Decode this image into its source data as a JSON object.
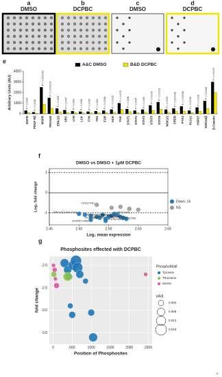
{
  "blots": [
    {
      "letter": "a",
      "label": "DMSO"
    },
    {
      "letter": "b",
      "label": "DCPBC"
    },
    {
      "letter": "c",
      "label": "DMSO"
    },
    {
      "letter": "d",
      "label": "DCPBC"
    }
  ],
  "page_number": "4",
  "chart_data": [
    {
      "type": "bar",
      "panel": "e",
      "ylabel": "Arbitrary Units (AU)",
      "categories": [
        "EGFR",
        "PDGF Rβ",
        "MSPR",
        "PRAS40",
        "ERK1/2",
        "SRC",
        "LYN",
        "LCK",
        "FYN",
        "YES",
        "FGR",
        "HCK",
        "FAK",
        "STAT1",
        "STAT2",
        "STAT3",
        "STAT5",
        "STAT6",
        "MSK1/2",
        "CREB",
        "PYK2",
        "PLCγ1",
        "HSP27",
        "GSK3α/β",
        "β-Catenin"
      ],
      "annotations": [
        "P = 0.0054",
        "P = 0.0038",
        "P = 0.0000153",
        "P = 0.0000019",
        "P = 0.0063",
        "P = 0.0047",
        "P = 0.0061",
        "P = 0.0064",
        "P = 0.0039",
        "P = 0.0051",
        "P = 0.01068",
        "P = 0.00016",
        "P = 0.0075",
        "P = 0.0256",
        "P = 0.0054",
        "P = 0.0083",
        "P = 0.00006",
        "P = 0.00019",
        "P = 0.0018",
        "P = 0.0000096",
        "P = 0.000096",
        "P = 0.00096",
        "P = 0.0026",
        "P = 0.00068",
        "P = 0.00019"
      ],
      "series": [
        {
          "name": "A&C DMSO",
          "color": "#000000",
          "values": [
            300,
            150,
            2500,
            1500,
            500,
            350,
            250,
            200,
            200,
            250,
            300,
            400,
            1000,
            450,
            300,
            400,
            800,
            1100,
            400,
            500,
            700,
            300,
            600,
            1200,
            3000
          ]
        },
        {
          "name": "B&D DCPBC",
          "color": "#f2e600",
          "values": [
            120,
            60,
            900,
            500,
            180,
            120,
            100,
            80,
            90,
            100,
            120,
            150,
            400,
            200,
            120,
            160,
            300,
            450,
            150,
            200,
            250,
            120,
            250,
            500,
            2000
          ]
        }
      ],
      "ylim": [
        0,
        4000
      ],
      "yticks": [
        0,
        1000,
        2000,
        3000,
        4000
      ]
    },
    {
      "type": "scatter",
      "panel": "f",
      "title": "DMSO vs DMSO + 1μM DCPBC",
      "xlabel": "Log₂ mean expression",
      "ylabel": "Log₂ fold change",
      "series": [
        {
          "name": "Down: 16",
          "color": "#1f77b4",
          "x": [
            2.5,
            2.51,
            2.52,
            2.53,
            2.535,
            2.54,
            2.545,
            2.55,
            2.555,
            2.56,
            2.565,
            2.57,
            2.575,
            2.58,
            2.52,
            2.545
          ],
          "values": [
            -1.05,
            -1.1,
            -1.15,
            -1.2,
            -1.25,
            -1.1,
            -1.3,
            -1.2,
            -1.15,
            -1.05,
            -1.1,
            -1.2,
            -1.25,
            -1.3,
            -1.35,
            -1.4
          ],
          "labels": [
            "ERK1/2(T202/Y204)",
            "MTOR(S2448)",
            null,
            "LYN(Y397)",
            "YES(Y426)",
            null,
            "LCK(Y394)",
            "FGR(Y412)",
            null,
            "SRC(Y419)",
            "FYN(Y420)",
            "CHK2(T68)",
            "FAK(Y397)",
            null,
            "EGFR(Y1086)",
            "STAT5(Y694)"
          ]
        },
        {
          "name": "NS",
          "color": "#9a9a9a",
          "x": [
            2.53,
            2.555,
            2.57,
            2.585,
            2.6
          ],
          "values": [
            -0.6,
            -0.75,
            -0.7,
            -0.8,
            -0.85
          ],
          "labels": [
            "HCK(Y411)",
            null,
            null,
            null,
            null
          ]
        }
      ],
      "reference_lines": [
        {
          "value": 1,
          "style": "dashed"
        },
        {
          "value": 0,
          "style": "solid"
        },
        {
          "value": -1,
          "style": "dashed"
        }
      ],
      "xlim": [
        2.45,
        2.65
      ],
      "xticks": [
        2.45,
        2.5,
        2.55,
        2.6,
        2.65
      ],
      "xtick_labels": [
        "2.45",
        "2.50",
        "2.55",
        "2.60",
        "2.65"
      ],
      "ylim": [
        -1.6,
        1.2
      ],
      "yticks": [
        -1,
        0,
        1
      ]
    },
    {
      "type": "bubble",
      "panel": "g",
      "title": "Phosphosites effected with DCPBC",
      "xlabel": "Position of Phosphosites",
      "ylabel": "fold change",
      "legend_title": "PhosphoMotif",
      "size_title": "pAdj",
      "size_legend": [
        0.004,
        0.008,
        0.012,
        0.016
      ],
      "series": [
        {
          "name": "Tyrosine",
          "color": "#1f77b4",
          "x": [
            300,
            380,
            420,
            520,
            600,
            640,
            700,
            450,
            500,
            1000,
            1050,
            850
          ],
          "values": [
            -1.95,
            -2.1,
            -2.25,
            -2.0,
            -1.9,
            -2.05,
            -2.2,
            -2.9,
            -3.1,
            -3.05,
            -3.6,
            -2.35
          ],
          "sizes": [
            0.01,
            0.008,
            0.006,
            0.012,
            0.016,
            0.014,
            0.008,
            0.004,
            0.006,
            0.006,
            0.01,
            0.004
          ]
        },
        {
          "name": "Threonine",
          "color": "#8bc34a",
          "x": [
            20,
            380
          ],
          "values": [
            -2.2,
            -2.25
          ],
          "sizes": [
            0.004,
            0.01
          ]
        },
        {
          "name": "Serine",
          "color": "#e0569b",
          "x": [
            10,
            40,
            60,
            90,
            2430
          ],
          "values": [
            -2.0,
            -2.1,
            -2.3,
            -2.45,
            -2.2
          ],
          "sizes": [
            0.002,
            0.003,
            0.002,
            0.004,
            0.002
          ]
        }
      ],
      "xlim": [
        -100,
        2600
      ],
      "xticks": [
        0,
        500,
        1000,
        1500,
        2000,
        2500
      ],
      "ylim": [
        -3.75,
        -1.8
      ],
      "yticks": [
        {
          "value": -2,
          "label": "-2.0"
        },
        -2.5,
        {
          "value": -3,
          "label": "-3.0"
        },
        -3.5
      ]
    }
  ]
}
